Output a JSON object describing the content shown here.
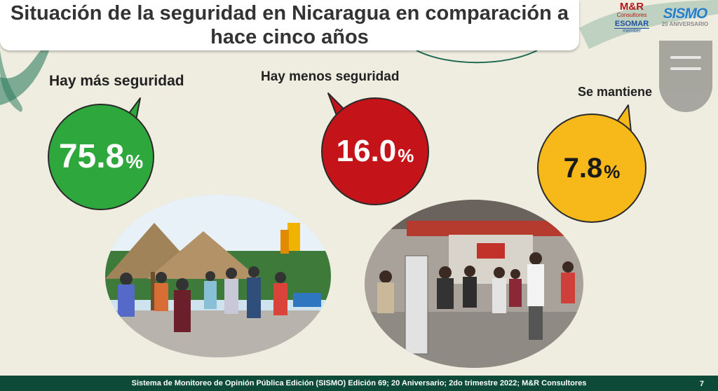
{
  "title": "Situación de la seguridad en Nicaragua en comparación a hace cinco años",
  "chart_data": {
    "type": "bubble",
    "unit": "%",
    "categories": [
      "Hay más seguridad",
      "Hay menos seguridad",
      "Se mantiene"
    ],
    "values": [
      75.8,
      16.0,
      7.8
    ],
    "value_labels": [
      "75.8",
      "16.0",
      "7.8"
    ],
    "colors": [
      "#2ea83d",
      "#c4141a",
      "#f7b91a"
    ],
    "value_text_colors": [
      "#ffffff",
      "#ffffff",
      "#1a1a1a"
    ]
  },
  "logos": {
    "mr_brand": "M&R",
    "mr_sub": "Consultores",
    "esomar": "ESOMAR",
    "esomar_member": "member",
    "sismo": "SISMO",
    "sismo_anniversary": "20 ANIVERSARIO"
  },
  "photos": [
    {
      "icon": "malecon-crowd-photo"
    },
    {
      "icon": "bus-terminal-crowd-photo"
    }
  ],
  "footer": {
    "text": "Sistema de Monitoreo de Opinión Pública Edición (SISMO) Edición 69; 20 Aniversario; 2do trimestre 2022; M&R Consultores",
    "page_number": "7"
  }
}
